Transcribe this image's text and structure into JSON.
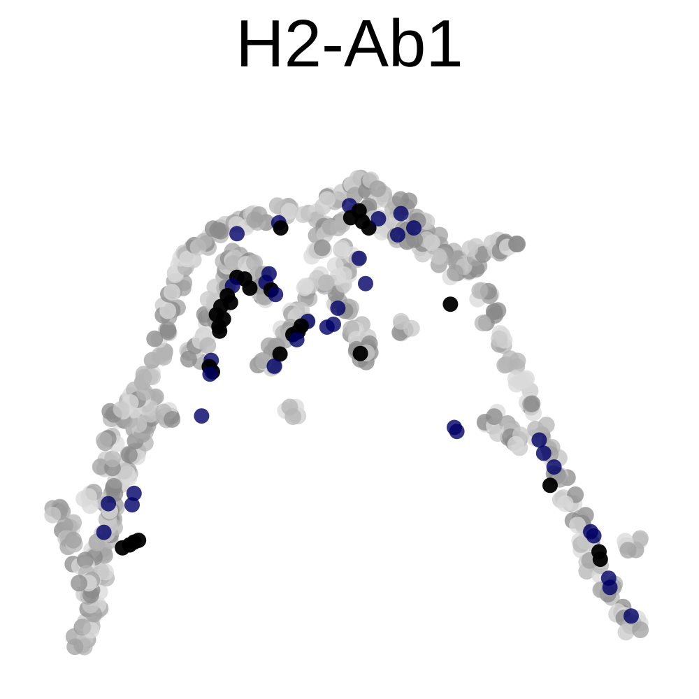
{
  "chart_data": {
    "type": "scatter",
    "title": "H2-Ab1",
    "axes_visible": false,
    "grid": false,
    "legend": "none",
    "xlim": [
      0,
      100
    ],
    "ylim": [
      0,
      100
    ],
    "colors": {
      "low": "#d9d9d9",
      "mid": "#8a8a8a",
      "high_blue": "#000066",
      "high_black": "#000000"
    },
    "background_trajectory": [
      [
        8,
        5
      ],
      [
        9,
        8
      ],
      [
        10,
        11
      ],
      [
        10,
        14
      ],
      [
        11,
        17
      ],
      [
        11,
        20
      ],
      [
        12,
        23
      ],
      [
        13,
        26
      ],
      [
        13,
        29
      ],
      [
        14,
        32
      ],
      [
        15,
        35
      ],
      [
        16,
        38
      ],
      [
        17,
        41
      ],
      [
        18,
        44
      ],
      [
        19,
        47
      ],
      [
        19,
        51
      ],
      [
        20,
        55
      ],
      [
        21,
        59
      ],
      [
        22,
        63
      ],
      [
        23,
        67
      ],
      [
        24,
        70
      ],
      [
        25,
        73
      ],
      [
        27,
        75
      ],
      [
        30,
        77
      ],
      [
        33,
        78
      ],
      [
        36,
        79
      ],
      [
        40,
        80
      ],
      [
        44,
        80
      ],
      [
        47,
        82
      ],
      [
        50,
        84
      ],
      [
        52,
        85
      ],
      [
        55,
        83
      ],
      [
        58,
        81
      ],
      [
        61,
        78
      ],
      [
        63,
        75
      ],
      [
        66,
        73
      ],
      [
        69,
        70
      ],
      [
        71,
        66
      ],
      [
        72,
        62
      ],
      [
        74,
        58
      ],
      [
        75,
        54
      ],
      [
        77,
        50
      ],
      [
        78,
        46
      ],
      [
        80,
        42
      ],
      [
        82,
        38
      ],
      [
        83,
        34
      ],
      [
        84,
        30
      ],
      [
        86,
        26
      ],
      [
        87,
        22
      ],
      [
        88,
        18
      ],
      [
        90,
        14
      ],
      [
        92,
        10
      ],
      [
        94,
        8
      ],
      [
        5,
        28
      ],
      [
        6,
        25
      ],
      [
        7,
        22
      ],
      [
        8,
        19
      ],
      [
        9,
        16
      ],
      [
        10,
        30
      ],
      [
        12,
        36
      ],
      [
        13,
        40
      ],
      [
        15,
        44
      ],
      [
        16,
        46
      ],
      [
        17,
        48
      ],
      [
        14,
        45
      ],
      [
        22,
        45
      ],
      [
        49,
        64
      ],
      [
        48,
        67
      ],
      [
        49,
        70
      ],
      [
        50,
        73
      ],
      [
        51,
        60
      ],
      [
        52,
        57
      ],
      [
        52,
        55
      ],
      [
        46,
        68
      ],
      [
        44,
        66
      ],
      [
        42,
        62
      ],
      [
        40,
        59
      ],
      [
        38,
        56
      ],
      [
        37,
        53
      ],
      [
        62,
        74
      ],
      [
        64,
        72
      ],
      [
        67,
        70
      ],
      [
        70,
        73
      ],
      [
        73,
        74
      ],
      [
        75,
        75
      ],
      [
        59,
        60
      ],
      [
        41,
        45
      ],
      [
        72,
        44
      ],
      [
        74,
        42
      ],
      [
        76,
        40
      ],
      [
        94,
        22
      ],
      [
        26,
        55
      ],
      [
        27,
        58
      ],
      [
        28,
        61
      ],
      [
        29,
        64
      ],
      [
        30,
        68
      ],
      [
        31,
        71
      ],
      [
        33,
        72
      ],
      [
        35,
        71
      ],
      [
        36,
        68
      ],
      [
        36,
        66
      ],
      [
        46,
        77
      ],
      [
        48,
        78
      ],
      [
        52,
        80
      ],
      [
        54,
        79
      ],
      [
        56,
        77
      ],
      [
        58,
        76
      ],
      [
        60,
        76
      ],
      [
        45,
        73
      ]
    ],
    "expressing_cells": [
      {
        "x": 32.5,
        "y": 76.3,
        "level": "blue"
      },
      {
        "x": 39,
        "y": 78.2,
        "level": "blue"
      },
      {
        "x": 39.3,
        "y": 77.3,
        "level": "black"
      },
      {
        "x": 50,
        "y": 81.2,
        "level": "blue"
      },
      {
        "x": 51.5,
        "y": 80.3,
        "level": "black"
      },
      {
        "x": 50.2,
        "y": 79.1,
        "level": "black"
      },
      {
        "x": 52,
        "y": 78.4,
        "level": "black"
      },
      {
        "x": 53,
        "y": 77.3,
        "level": "black"
      },
      {
        "x": 54.5,
        "y": 78.9,
        "level": "blue"
      },
      {
        "x": 58,
        "y": 79.8,
        "level": "blue"
      },
      {
        "x": 60,
        "y": 77.3,
        "level": "blue"
      },
      {
        "x": 57.5,
        "y": 76.1,
        "level": "blue"
      },
      {
        "x": 51.5,
        "y": 72,
        "level": "blue"
      },
      {
        "x": 52.5,
        "y": 67.6,
        "level": "blue"
      },
      {
        "x": 65.7,
        "y": 64,
        "level": "black"
      },
      {
        "x": 32.5,
        "y": 68.7,
        "level": "black"
      },
      {
        "x": 33.7,
        "y": 68.4,
        "level": "black"
      },
      {
        "x": 31.8,
        "y": 67.2,
        "level": "blue"
      },
      {
        "x": 34.5,
        "y": 66.8,
        "level": "black"
      },
      {
        "x": 37.5,
        "y": 69.3,
        "level": "blue"
      },
      {
        "x": 37,
        "y": 67.8,
        "level": "blue"
      },
      {
        "x": 37.8,
        "y": 66.5,
        "level": "black"
      },
      {
        "x": 38.5,
        "y": 65.7,
        "level": "blue"
      },
      {
        "x": 31,
        "y": 65.5,
        "level": "black"
      },
      {
        "x": 31.5,
        "y": 64.3,
        "level": "black"
      },
      {
        "x": 30,
        "y": 63.6,
        "level": "black"
      },
      {
        "x": 29.3,
        "y": 62.2,
        "level": "black"
      },
      {
        "x": 30.4,
        "y": 61.4,
        "level": "black"
      },
      {
        "x": 29.7,
        "y": 60.1,
        "level": "black"
      },
      {
        "x": 29.8,
        "y": 59.3,
        "level": "black"
      },
      {
        "x": 43.5,
        "y": 61,
        "level": "blue"
      },
      {
        "x": 42.5,
        "y": 60.2,
        "level": "black"
      },
      {
        "x": 42,
        "y": 59.2,
        "level": "black"
      },
      {
        "x": 41.2,
        "y": 58.7,
        "level": "black"
      },
      {
        "x": 41.8,
        "y": 57.8,
        "level": "blue"
      },
      {
        "x": 46.5,
        "y": 60,
        "level": "blue"
      },
      {
        "x": 47.5,
        "y": 60.5,
        "level": "blue"
      },
      {
        "x": 48.2,
        "y": 63.3,
        "level": "blue"
      },
      {
        "x": 39.2,
        "y": 55.3,
        "level": "black"
      },
      {
        "x": 38.3,
        "y": 53.2,
        "level": "blue"
      },
      {
        "x": 51.7,
        "y": 55.4,
        "level": "black"
      },
      {
        "x": 28.5,
        "y": 54.2,
        "level": "blue"
      },
      {
        "x": 28.2,
        "y": 53.1,
        "level": "black"
      },
      {
        "x": 28.7,
        "y": 52.2,
        "level": "black"
      },
      {
        "x": 28.3,
        "y": 51.8,
        "level": "blue"
      },
      {
        "x": 27,
        "y": 44.5,
        "level": "blue"
      },
      {
        "x": 66.3,
        "y": 42.5,
        "level": "blue"
      },
      {
        "x": 66.7,
        "y": 41.8,
        "level": "blue"
      },
      {
        "x": 79.5,
        "y": 40.3,
        "level": "blue"
      },
      {
        "x": 80.2,
        "y": 38,
        "level": "blue"
      },
      {
        "x": 81.8,
        "y": 35.6,
        "level": "blue"
      },
      {
        "x": 81.2,
        "y": 32.4,
        "level": "black"
      },
      {
        "x": 87.5,
        "y": 24.3,
        "level": "blue"
      },
      {
        "x": 88,
        "y": 23.6,
        "level": "blue"
      },
      {
        "x": 88.8,
        "y": 20.8,
        "level": "black"
      },
      {
        "x": 89,
        "y": 19.5,
        "level": "black"
      },
      {
        "x": 90.3,
        "y": 16.2,
        "level": "blue"
      },
      {
        "x": 90.5,
        "y": 14.6,
        "level": "blue"
      },
      {
        "x": 93.8,
        "y": 9.6,
        "level": "blue"
      },
      {
        "x": 16.5,
        "y": 31,
        "level": "blue"
      },
      {
        "x": 16.2,
        "y": 29,
        "level": "blue"
      },
      {
        "x": 12.5,
        "y": 29.2,
        "level": "blue"
      },
      {
        "x": 11.8,
        "y": 24.2,
        "level": "blue"
      },
      {
        "x": 17.2,
        "y": 22.8,
        "level": "black"
      },
      {
        "x": 16.5,
        "y": 22.5,
        "level": "black"
      },
      {
        "x": 15.8,
        "y": 22,
        "level": "black"
      },
      {
        "x": 14.7,
        "y": 21.5,
        "level": "black"
      }
    ]
  }
}
